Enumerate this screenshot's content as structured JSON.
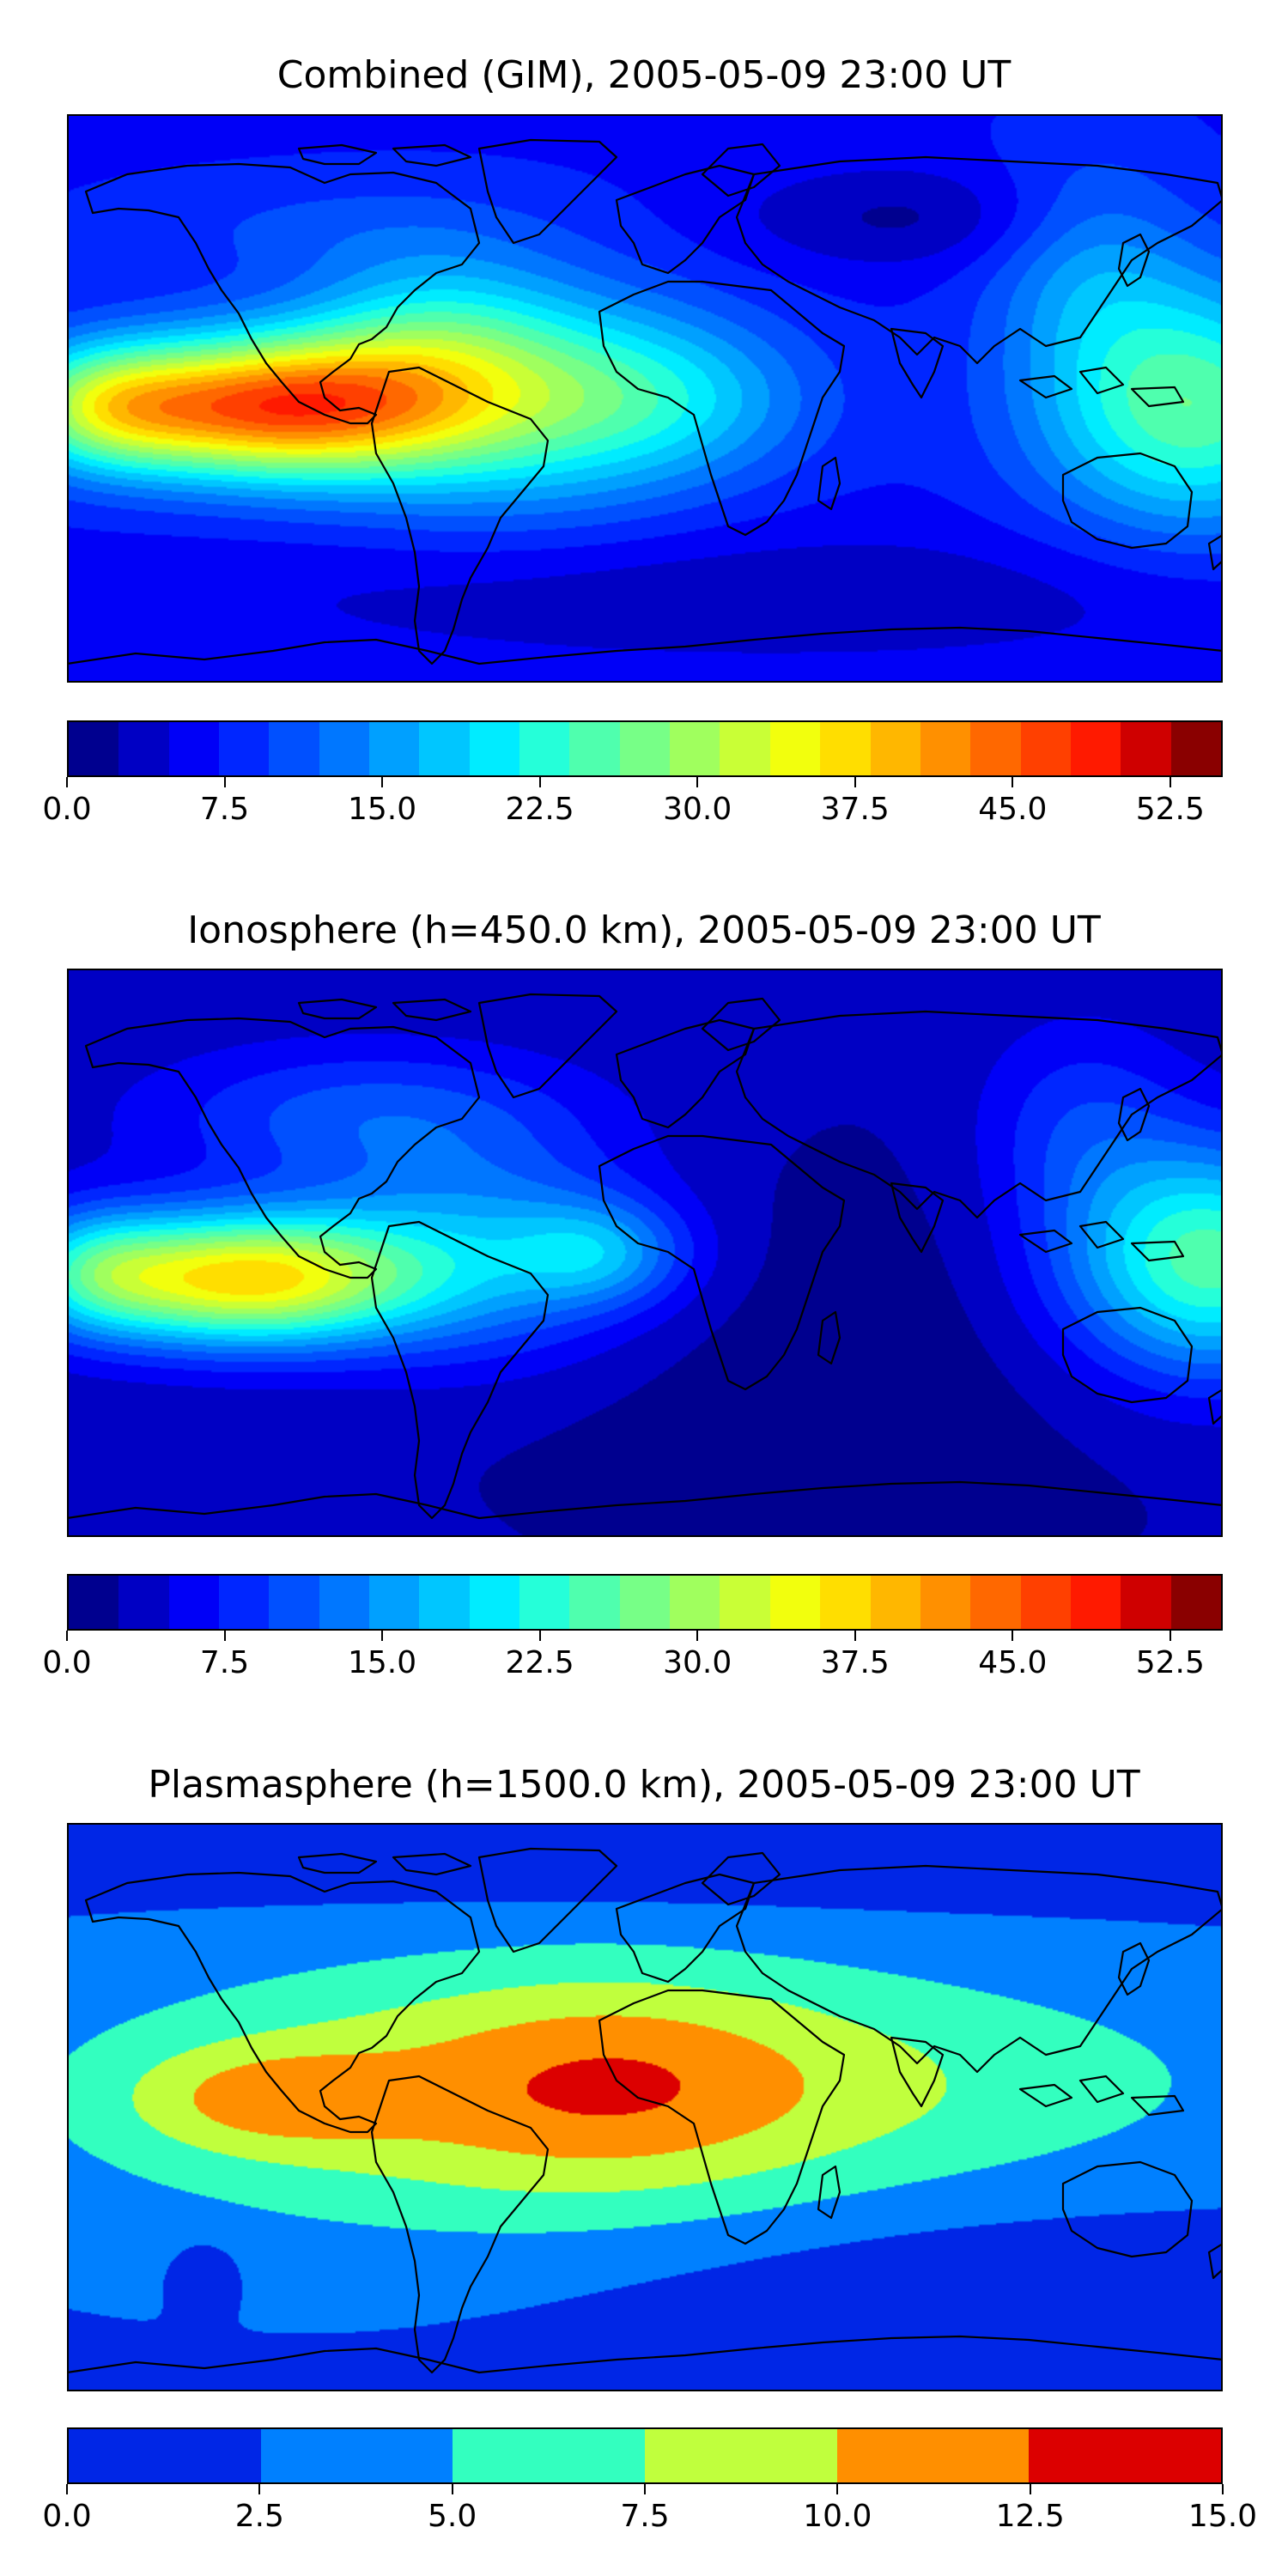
{
  "figure": {
    "panels": [
      {
        "id": "combined",
        "title": "Combined (GIM), 2005-05-09 23:00 UT",
        "field": "combined",
        "colorbar": {
          "vmin": 0.0,
          "vmax": 55.0,
          "step": 2.5,
          "colors": [
            "#00008f",
            "#0000c4",
            "#0000f7",
            "#0026ff",
            "#0050ff",
            "#0077ff",
            "#00a0ff",
            "#00c6ff",
            "#00ecff",
            "#25ffd9",
            "#4fffae",
            "#77ff87",
            "#a0ff5e",
            "#c9ff36",
            "#f2ff0d",
            "#ffde00",
            "#ffb700",
            "#ff9000",
            "#ff6800",
            "#ff4000",
            "#ff1a00",
            "#cf0000",
            "#8a0000"
          ],
          "ticks": [
            "0.0",
            "7.5",
            "15.0",
            "22.5",
            "30.0",
            "37.5",
            "45.0",
            "52.5"
          ],
          "tick_values": [
            0.0,
            7.5,
            15.0,
            22.5,
            30.0,
            37.5,
            45.0,
            52.5
          ]
        }
      },
      {
        "id": "ionosphere",
        "title": "Ionosphere  (h=450.0 km), 2005-05-09 23:00 UT",
        "field": "ionosphere",
        "colorbar": {
          "vmin": 0.0,
          "vmax": 55.0,
          "step": 2.5,
          "colors": [
            "#00008f",
            "#0000c4",
            "#0000f7",
            "#0026ff",
            "#0050ff",
            "#0077ff",
            "#00a0ff",
            "#00c6ff",
            "#00ecff",
            "#25ffd9",
            "#4fffae",
            "#77ff87",
            "#a0ff5e",
            "#c9ff36",
            "#f2ff0d",
            "#ffde00",
            "#ffb700",
            "#ff9000",
            "#ff6800",
            "#ff4000",
            "#ff1a00",
            "#cf0000",
            "#8a0000"
          ],
          "ticks": [
            "0.0",
            "7.5",
            "15.0",
            "22.5",
            "30.0",
            "37.5",
            "45.0",
            "52.5"
          ],
          "tick_values": [
            0.0,
            7.5,
            15.0,
            22.5,
            30.0,
            37.5,
            45.0,
            52.5
          ]
        }
      },
      {
        "id": "plasmasphere",
        "title": "Plasmasphere (h=1500.0 km), 2005-05-09 23:00 UT",
        "field": "plasmasphere",
        "colorbar": {
          "vmin": 0.0,
          "vmax": 15.0,
          "step": 2.5,
          "colors": [
            "#0026e6",
            "#0080ff",
            "#33ffbf",
            "#c0ff3d",
            "#ff8f00",
            "#dc0000"
          ],
          "ticks": [
            "0.0",
            "2.5",
            "5.0",
            "7.5",
            "10.0",
            "12.5",
            "15.0"
          ],
          "tick_values": [
            0.0,
            2.5,
            5.0,
            7.5,
            10.0,
            12.5,
            15.0
          ]
        }
      }
    ]
  }
}
